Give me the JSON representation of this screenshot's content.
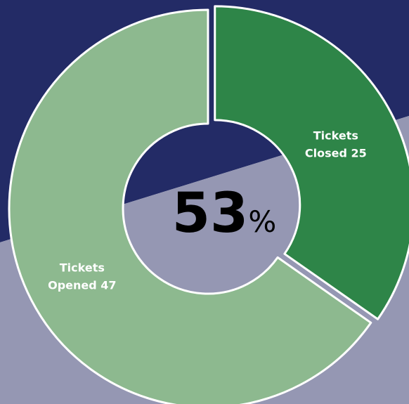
{
  "colors": {
    "background_top": "#232b66",
    "background_bottom": "#9597b3",
    "slice_closed": "#2e8548",
    "slice_opened": "#8db98f",
    "slice_stroke": "#ffffff"
  },
  "chart_data": {
    "type": "pie",
    "variant": "donut",
    "slices": [
      {
        "label_line1": "Tickets",
        "label_line2": "Closed 25",
        "value": 25
      },
      {
        "label_line1": "Tickets",
        "label_line2": "Opened 47",
        "value": 47
      }
    ],
    "center_value": "53",
    "center_unit": "%"
  }
}
